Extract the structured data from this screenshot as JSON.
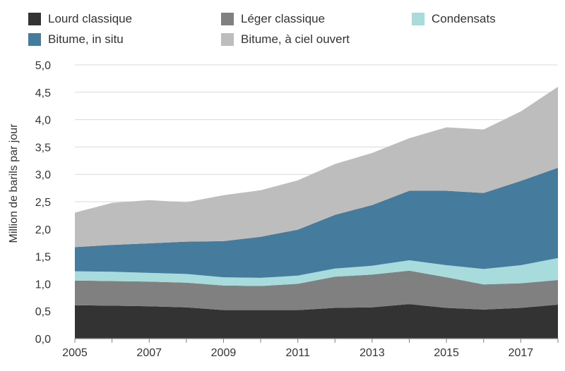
{
  "chart_data": {
    "type": "area",
    "stacked": true,
    "title": "",
    "xlabel": "",
    "ylabel": "Million de barils par jour",
    "ylim": [
      0,
      5
    ],
    "yticks": [
      "0,0",
      "0,5",
      "1,0",
      "1,5",
      "2,0",
      "2,5",
      "3,0",
      "3,5",
      "4,0",
      "4,5",
      "5,0"
    ],
    "xticks": [
      "2005",
      "2007",
      "2009",
      "2011",
      "2013",
      "2015",
      "2017"
    ],
    "x": [
      2005,
      2006,
      2007,
      2008,
      2009,
      2010,
      2011,
      2012,
      2013,
      2014,
      2015,
      2016,
      2017,
      2018
    ],
    "grid": true,
    "legend_position": "top",
    "series": [
      {
        "name": "Lourd classique",
        "color": "#333333",
        "values": [
          0.61,
          0.6,
          0.59,
          0.57,
          0.52,
          0.52,
          0.52,
          0.56,
          0.57,
          0.63,
          0.56,
          0.53,
          0.56,
          0.62
        ]
      },
      {
        "name": "Léger classique",
        "color": "#808080",
        "values": [
          0.45,
          0.45,
          0.45,
          0.45,
          0.45,
          0.44,
          0.48,
          0.57,
          0.6,
          0.61,
          0.56,
          0.46,
          0.45,
          0.45
        ]
      },
      {
        "name": "Condensats",
        "color": "#a8dcdc",
        "values": [
          0.17,
          0.17,
          0.16,
          0.16,
          0.15,
          0.15,
          0.15,
          0.15,
          0.16,
          0.19,
          0.22,
          0.28,
          0.33,
          0.4
        ]
      },
      {
        "name": "Bitume, in situ",
        "color": "#457b9d",
        "values": [
          0.44,
          0.49,
          0.54,
          0.59,
          0.66,
          0.75,
          0.84,
          0.98,
          1.11,
          1.27,
          1.36,
          1.39,
          1.54,
          1.65
        ]
      },
      {
        "name": "Bitume, à ciel ouvert",
        "color": "#bdbdbd",
        "values": [
          0.63,
          0.77,
          0.79,
          0.72,
          0.84,
          0.85,
          0.9,
          0.93,
          0.95,
          0.96,
          1.16,
          1.16,
          1.27,
          1.48
        ]
      }
    ]
  }
}
